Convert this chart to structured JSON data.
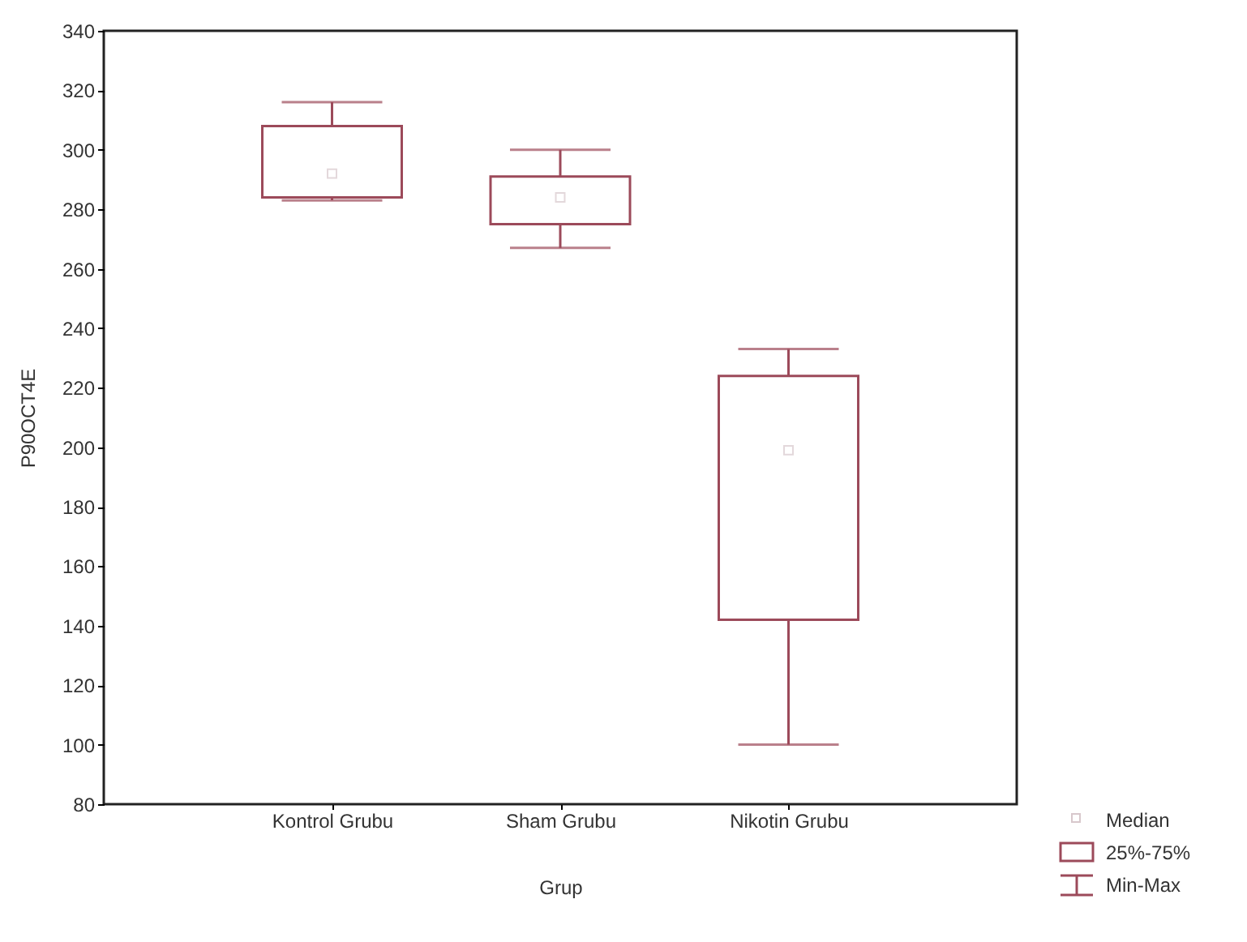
{
  "chart_data": {
    "type": "box",
    "xlabel": "Grup",
    "ylabel": "P90OCT4E",
    "categories": [
      "Kontrol Grubu",
      "Sham Grubu",
      "Nikotin Grubu"
    ],
    "series": [
      {
        "color": "#9c4a5a",
        "boxes": [
          {
            "low": 283,
            "q1": 284,
            "median": 292,
            "q3": 308,
            "high": 316
          },
          {
            "low": 267,
            "q1": 275,
            "median": 284,
            "q3": 291,
            "high": 300
          },
          {
            "low": 100,
            "q1": 142,
            "median": 199,
            "q3": 224,
            "high": 233
          }
        ]
      }
    ],
    "ylim": [
      80,
      340
    ],
    "yticks": [
      80,
      100,
      120,
      140,
      160,
      180,
      200,
      220,
      240,
      260,
      280,
      300,
      320,
      340
    ],
    "grid": false,
    "annotations": [
      "Median",
      "25%-75%",
      "Min-Max"
    ]
  }
}
